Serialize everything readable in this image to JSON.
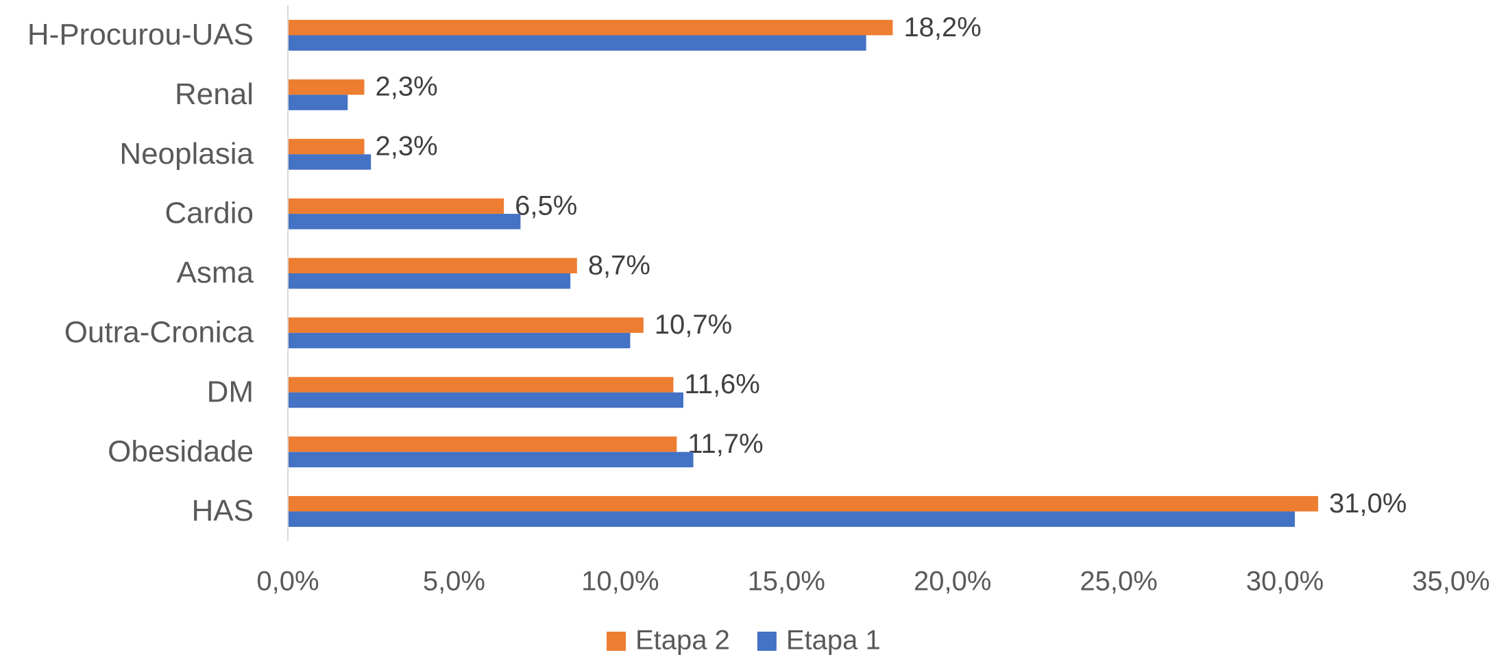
{
  "chart_data": {
    "type": "hbar",
    "categories": [
      "H-Procurou-UAS",
      "Renal",
      "Neoplasia",
      "Cardio",
      "Asma",
      "Outra-Cronica",
      "DM",
      "Obesidade",
      "HAS"
    ],
    "series": [
      {
        "name": "Etapa 2",
        "color": "#ed7d31",
        "values": [
          18.2,
          2.3,
          2.3,
          6.5,
          8.7,
          10.7,
          11.6,
          11.7,
          31.0
        ],
        "value_labels": [
          "18,2%",
          "2,3%",
          "2,3%",
          "6,5%",
          "8,7%",
          "10,7%",
          "11,6%",
          "11,7%",
          "31,0%"
        ]
      },
      {
        "name": "Etapa 1",
        "color": "#4472c4",
        "values": [
          17.4,
          1.8,
          2.5,
          7.0,
          8.5,
          10.3,
          11.9,
          12.2,
          30.3
        ]
      }
    ],
    "xlim": [
      0,
      35
    ],
    "xticks": [
      {
        "value": 0,
        "label": "0,0%"
      },
      {
        "value": 5,
        "label": "5,0%"
      },
      {
        "value": 10,
        "label": "10,0%"
      },
      {
        "value": 15,
        "label": "15,0%"
      },
      {
        "value": 20,
        "label": "20,0%"
      },
      {
        "value": 25,
        "label": "25,0%"
      },
      {
        "value": 30,
        "label": "30,0%"
      },
      {
        "value": 35,
        "label": "35,0%"
      }
    ],
    "legend": "bottom"
  }
}
